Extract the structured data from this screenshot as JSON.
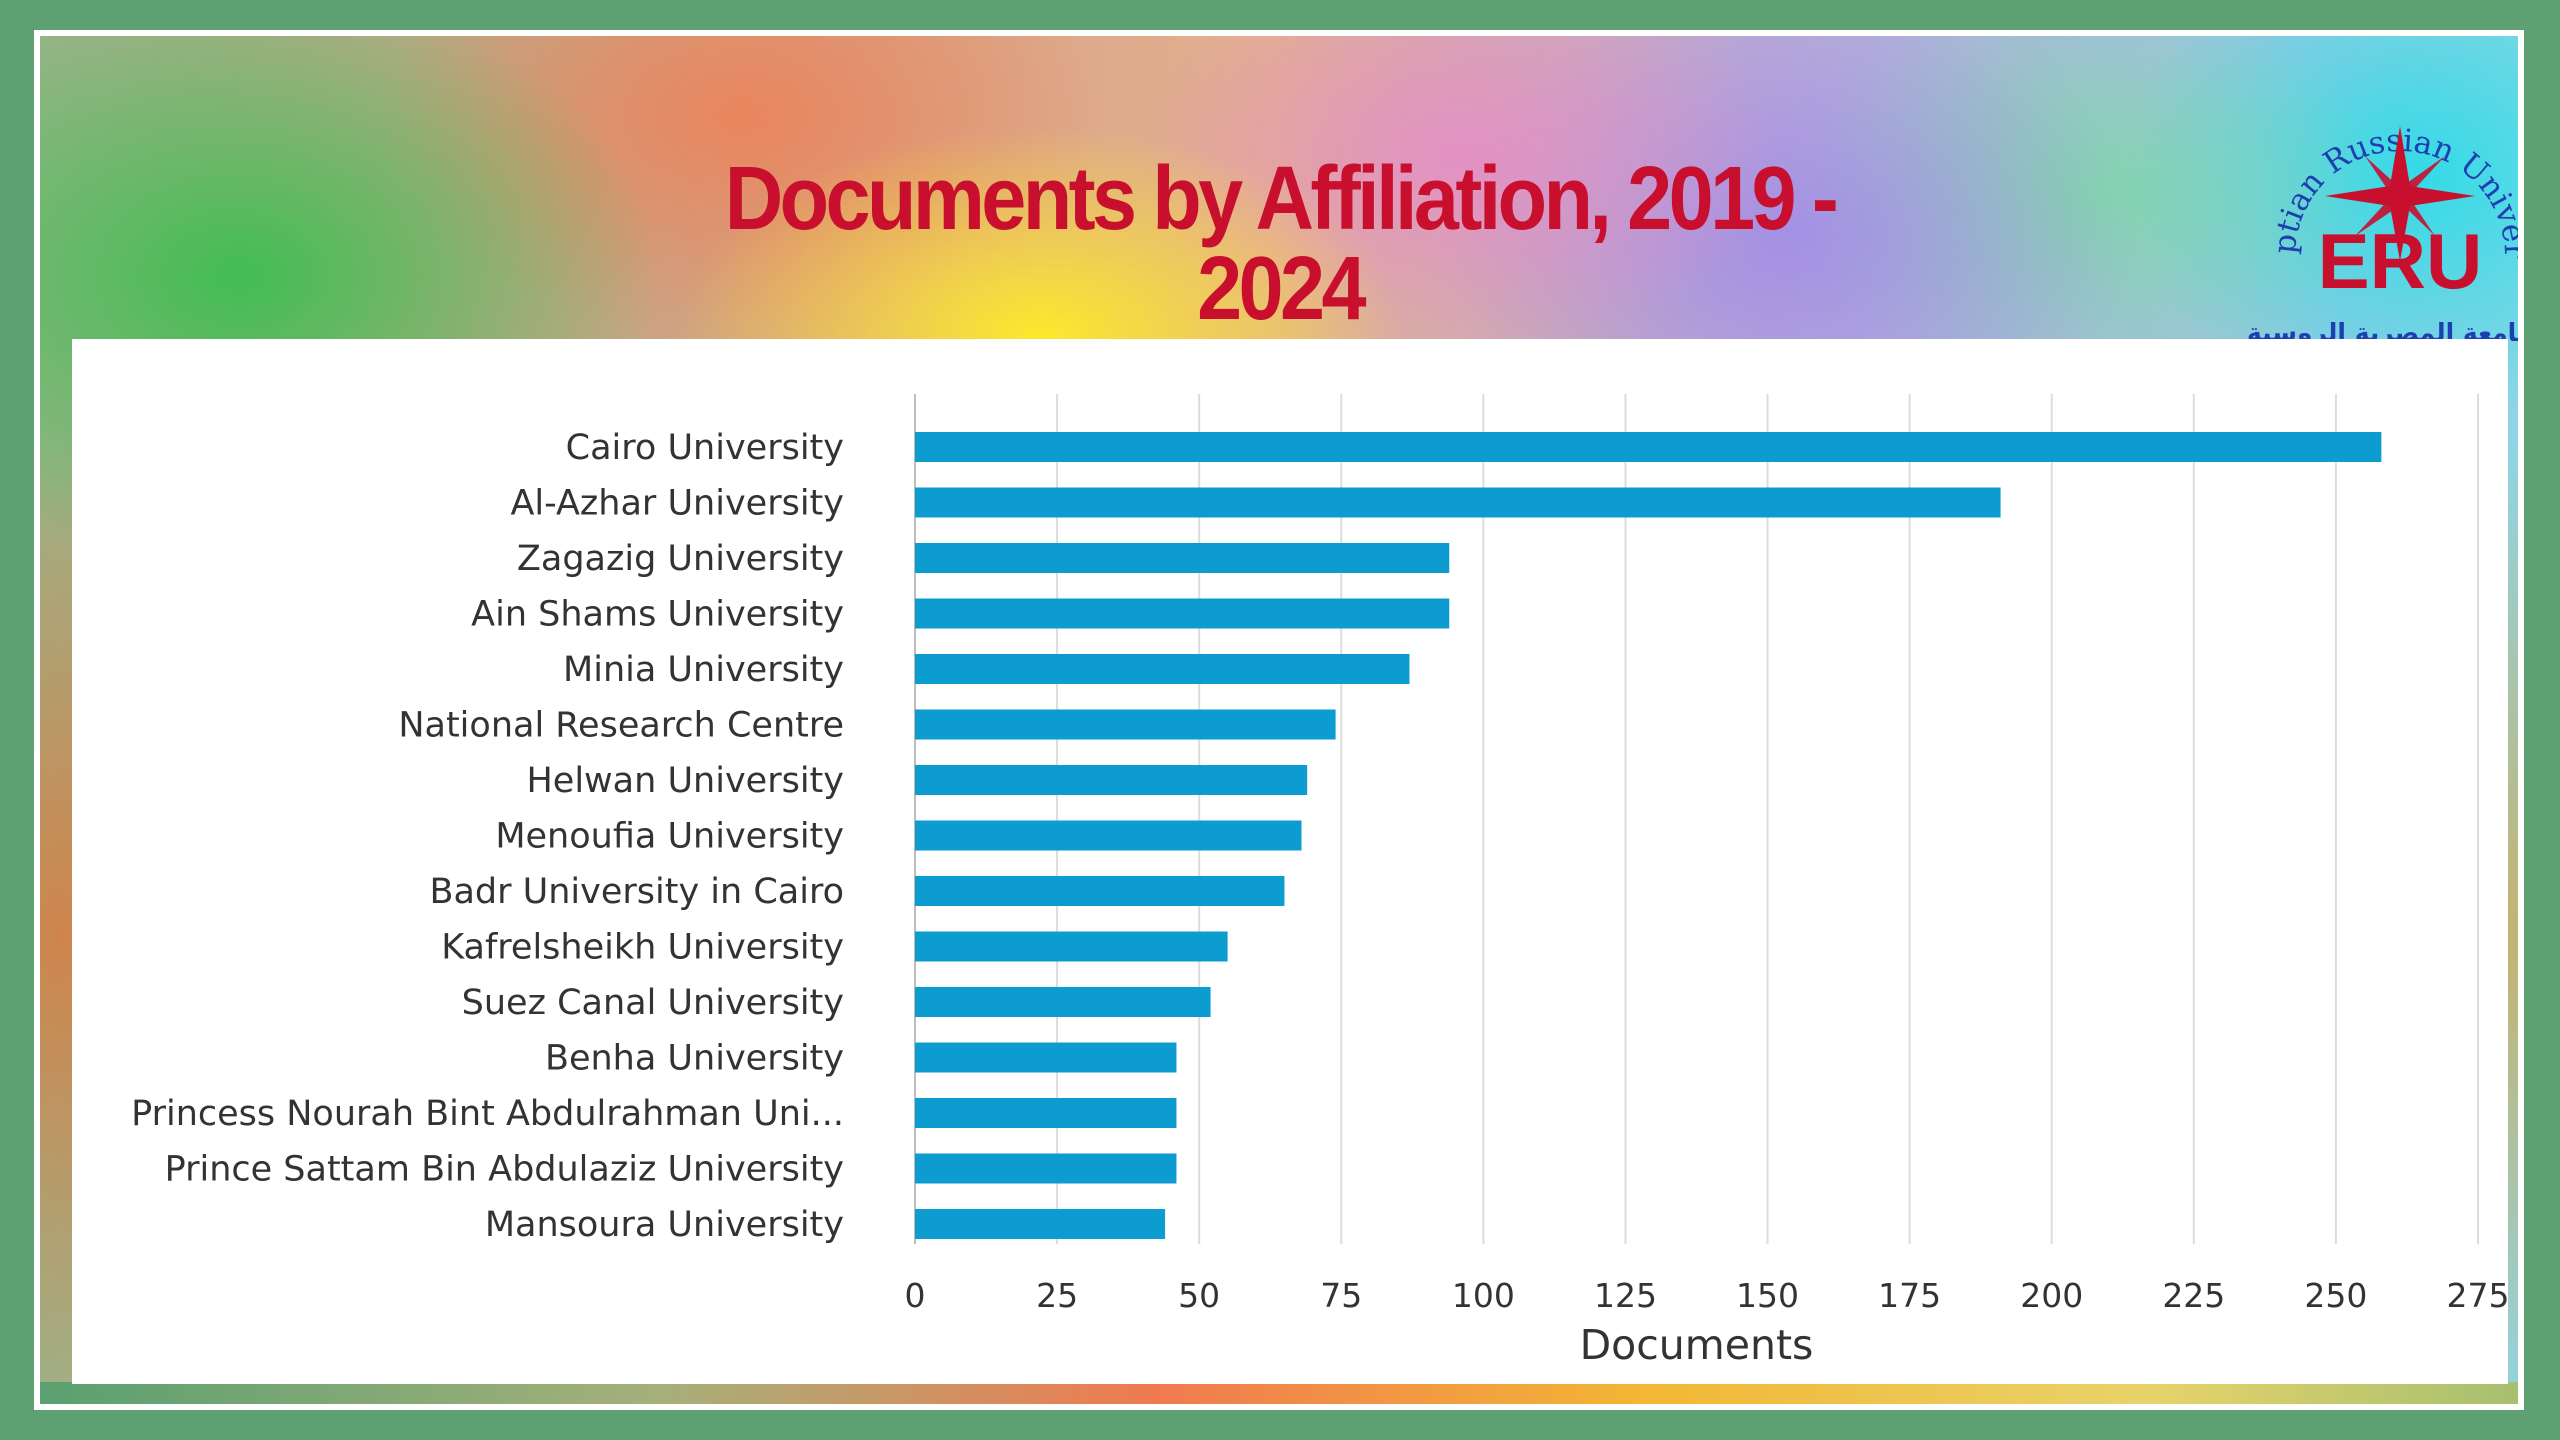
{
  "title": "Documents by Affiliation, 2019 - 2024",
  "logo": {
    "arc_text": "Egyptian Russian University",
    "initials": "ERU",
    "arabic_text": "الجامعة المصرية الروسية",
    "colors": {
      "ring": "#1e3fb0",
      "star": "#c8102e",
      "initials": "#c8102e",
      "arabic": "#1e3fb0"
    }
  },
  "colors": {
    "bar": "#0c9ccf",
    "title": "#c8102e",
    "frame": "#5ea072"
  },
  "chart_data": {
    "type": "bar",
    "orientation": "horizontal",
    "categories": [
      "Cairo University",
      "Al-Azhar University",
      "Zagazig University",
      "Ain Shams University",
      "Minia University",
      "National Research Centre",
      "Helwan University",
      "Menoufia University",
      "Badr University in Cairo",
      "Kafrelsheikh University",
      "Suez Canal University",
      "Benha University",
      "Princess Nourah Bint Abdulrahman Uni...",
      "Prince Sattam Bin Abdulaziz University",
      "Mansoura University"
    ],
    "values": [
      258,
      191,
      94,
      94,
      87,
      74,
      69,
      68,
      65,
      55,
      52,
      46,
      46,
      46,
      44
    ],
    "xlabel": "Documents",
    "ylabel": "",
    "xlim": [
      0,
      275
    ],
    "xticks": [
      "0",
      "25",
      "50",
      "75",
      "100",
      "125",
      "150",
      "175",
      "200",
      "225",
      "250",
      "275"
    ],
    "grid": "vertical",
    "legend": "none"
  }
}
